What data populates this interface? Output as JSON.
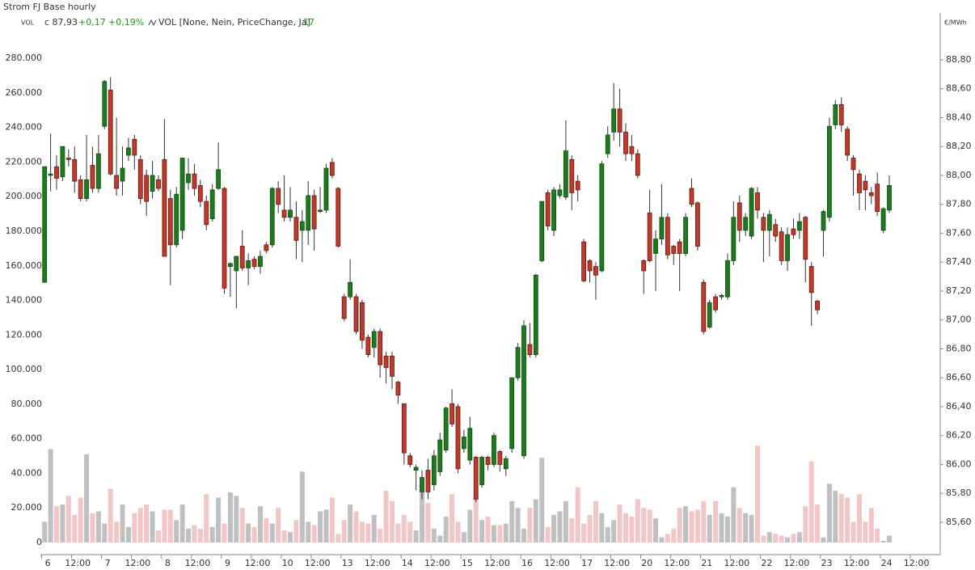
{
  "chart_data": {
    "type": "candlestick",
    "title": "Strom FJ Base hourly",
    "header": {
      "pane_label": "VOL",
      "close": "c 87,93",
      "change": "+0,17",
      "change_pct": "+0,19%",
      "indicator": "VOL [None, Nein, PriceChange, Ja]",
      "indicator_value": "17"
    },
    "y2_unit": "€/MWh",
    "ohlc": {
      "axis": "y2",
      "up_color": "#1e7a1e",
      "down_color": "#c0392b",
      "open": [
        87.26,
        88.0,
        88.06,
        87.99,
        88.12,
        88.11,
        87.97,
        87.84,
        88.07,
        87.91,
        88.34,
        88.59,
        88.0,
        87.96,
        88.14,
        88.25,
        88.11,
        88.0,
        87.89,
        87.97,
        88.11,
        87.84,
        87.52,
        87.62,
        87.95,
        88.01,
        87.93,
        87.82,
        87.7,
        87.91,
        87.91,
        87.37,
        87.34,
        87.51,
        87.36,
        87.42,
        87.37,
        87.52,
        87.52,
        87.91,
        87.76,
        87.71,
        87.71,
        87.62,
        87.62,
        87.86,
        87.75,
        87.76,
        88.09,
        87.91,
        87.16,
        87.16,
        87.16,
        87.12,
        86.88,
        86.81,
        86.92,
        86.75,
        86.75,
        86.57,
        86.42,
        86.06,
        85.96,
        85.81,
        85.96,
        85.86,
        85.95,
        86.1,
        86.42,
        86.4,
        86.11,
        86.03,
        86.05,
        85.86,
        86.05,
        86.0,
        86.09,
        85.97,
        86.11,
        86.6,
        86.06,
        86.83,
        86.76,
        87.41,
        87.88,
        87.62,
        87.86,
        87.85,
        88.11,
        87.96,
        87.54,
        87.41,
        87.37,
        87.34,
        88.15,
        88.3,
        88.46,
        88.3,
        88.2,
        88.15,
        87.41,
        87.74,
        87.46,
        87.56,
        87.71,
        87.51,
        87.54,
        87.46,
        87.91,
        87.81,
        87.26,
        86.95,
        87.16,
        87.16,
        87.16,
        87.41,
        87.81,
        87.62,
        87.58,
        87.88,
        87.71,
        87.62,
        87.66,
        87.61,
        87.41,
        87.63,
        87.62,
        87.71,
        87.37,
        87.13,
        87.62,
        87.71,
        88.35,
        88.49,
        88.32,
        88.12,
        88.01,
        87.96,
        87.88,
        87.94,
        87.62,
        87.76
      ],
      "high": [
        88.06,
        88.29,
        88.14,
        88.2,
        88.18,
        88.2,
        88.0,
        88.28,
        88.2,
        88.28,
        88.66,
        88.68,
        88.4,
        88.2,
        88.26,
        88.28,
        88.14,
        88.04,
        88.1,
        88.0,
        88.39,
        87.9,
        87.92,
        88.12,
        88.12,
        88.08,
        87.97,
        87.86,
        87.94,
        88.23,
        87.92,
        87.4,
        87.44,
        87.62,
        87.46,
        87.44,
        87.48,
        87.54,
        87.92,
        87.96,
        88.0,
        87.92,
        87.82,
        87.76,
        87.96,
        87.9,
        87.92,
        88.08,
        88.12,
        87.92,
        87.18,
        87.42,
        87.18,
        87.14,
        86.9,
        86.94,
        86.94,
        86.78,
        86.78,
        86.58,
        86.42,
        86.08,
        86.0,
        85.96,
        86.04,
        86.1,
        86.22,
        86.4,
        86.52,
        86.42,
        86.24,
        86.33,
        86.06,
        86.06,
        86.06,
        86.22,
        86.1,
        86.06,
        86.6,
        86.84,
        87.0,
        86.98,
        87.32,
        87.82,
        87.9,
        87.92,
        87.94,
        88.38,
        88.14,
        88.0,
        87.56,
        87.42,
        87.4,
        88.1,
        88.34,
        88.64,
        88.6,
        88.36,
        88.28,
        88.18,
        87.42,
        87.9,
        87.62,
        87.94,
        87.74,
        87.52,
        87.56,
        87.74,
        87.98,
        87.82,
        87.28,
        87.14,
        87.18,
        87.18,
        87.46,
        87.82,
        87.86,
        87.74,
        87.92,
        87.92,
        87.74,
        87.76,
        87.7,
        87.64,
        87.64,
        87.7,
        87.74,
        87.72,
        87.4,
        87.14,
        87.76,
        88.4,
        88.52,
        88.54,
        88.34,
        88.14,
        88.04,
        88.0,
        87.92,
        88.02,
        87.78,
        88.0
      ],
      "low": [
        87.26,
        87.89,
        87.9,
        87.96,
        88.06,
        87.88,
        87.82,
        87.82,
        87.88,
        87.88,
        88.32,
        88.0,
        87.86,
        87.86,
        88.1,
        88.04,
        87.8,
        87.72,
        87.84,
        87.89,
        87.44,
        87.24,
        87.5,
        87.56,
        87.9,
        87.86,
        87.78,
        87.62,
        87.68,
        87.9,
        87.18,
        87.16,
        87.08,
        87.34,
        87.24,
        87.35,
        87.32,
        87.46,
        87.5,
        87.74,
        87.68,
        87.68,
        87.42,
        87.4,
        87.52,
        87.48,
        87.74,
        87.74,
        87.98,
        87.5,
        86.99,
        87.14,
        86.9,
        86.8,
        86.74,
        86.74,
        86.6,
        86.56,
        86.52,
        86.42,
        86.0,
        85.98,
        85.82,
        85.76,
        85.76,
        85.82,
        85.92,
        86.08,
        86.26,
        85.94,
        86.08,
        86.0,
        85.74,
        85.84,
        85.96,
        85.98,
        85.95,
        85.92,
        86.08,
        86.58,
        86.04,
        86.74,
        86.74,
        87.4,
        87.62,
        87.58,
        87.84,
        87.83,
        87.76,
        87.82,
        87.26,
        87.26,
        87.14,
        87.33,
        88.12,
        88.24,
        88.2,
        88.1,
        88.1,
        87.98,
        87.18,
        87.4,
        87.2,
        87.52,
        87.42,
        87.38,
        87.2,
        87.44,
        87.78,
        87.48,
        86.9,
        86.94,
        87.05,
        87.14,
        87.14,
        87.38,
        87.54,
        87.58,
        87.56,
        87.7,
        87.4,
        87.44,
        87.54,
        87.38,
        87.34,
        87.56,
        87.56,
        87.26,
        86.96,
        87.04,
        87.44,
        87.68,
        88.32,
        88.3,
        88.1,
        87.86,
        87.76,
        87.76,
        87.8,
        87.72,
        87.6,
        87.74
      ],
      "close": [
        88.06,
        88.01,
        87.98,
        88.2,
        88.11,
        87.96,
        87.84,
        87.97,
        87.91,
        88.15,
        88.65,
        88.01,
        87.91,
        88.05,
        88.19,
        88.14,
        87.84,
        87.82,
        88.0,
        87.91,
        87.44,
        87.52,
        87.87,
        88.12,
        88.01,
        87.91,
        87.82,
        87.66,
        87.9,
        88.04,
        87.22,
        87.39,
        87.44,
        87.36,
        87.41,
        87.37,
        87.44,
        87.48,
        87.91,
        87.8,
        87.71,
        87.76,
        87.55,
        87.68,
        87.86,
        87.63,
        87.76,
        88.05,
        88.0,
        87.51,
        87.01,
        87.26,
        86.92,
        86.86,
        86.76,
        86.92,
        86.69,
        86.67,
        86.61,
        86.48,
        86.08,
        86.0,
        85.98,
        85.91,
        85.81,
        86.06,
        86.17,
        86.39,
        86.28,
        85.97,
        86.19,
        86.25,
        85.76,
        86.05,
        86.0,
        86.2,
        86.0,
        86.04,
        86.6,
        86.81,
        86.96,
        86.76,
        87.31,
        87.82,
        87.65,
        87.9,
        87.9,
        88.17,
        87.88,
        87.9,
        87.27,
        87.34,
        87.31,
        88.08,
        88.28,
        88.46,
        88.3,
        88.15,
        88.15,
        88.0,
        87.34,
        87.41,
        87.56,
        87.71,
        87.45,
        87.46,
        87.46,
        87.71,
        87.8,
        87.51,
        86.92,
        87.12,
        87.07,
        87.17,
        87.41,
        87.71,
        87.62,
        87.71,
        87.91,
        87.76,
        87.62,
        87.73,
        87.58,
        87.41,
        87.59,
        87.59,
        87.68,
        87.42,
        87.19,
        87.07,
        87.75,
        88.34,
        88.49,
        88.35,
        88.14,
        88.04,
        87.88,
        87.9,
        87.86,
        87.75,
        87.77,
        87.93
      ]
    },
    "volume": {
      "axis": "y",
      "up_color": "#c0c0c0",
      "down_color": "#f2c6c6",
      "values": [
        12000,
        54000,
        21000,
        22000,
        27000,
        16000,
        26000,
        51000,
        17000,
        18000,
        11000,
        31000,
        12000,
        22000,
        9000,
        17000,
        20000,
        22000,
        18000,
        7000,
        19000,
        19000,
        13000,
        22000,
        8000,
        10000,
        8000,
        28000,
        9000,
        26000,
        11000,
        29000,
        27000,
        20000,
        11000,
        9000,
        21000,
        14000,
        11000,
        20000,
        7000,
        6000,
        13000,
        41000,
        12000,
        10000,
        18000,
        19000,
        26000,
        5000,
        13000,
        22000,
        18000,
        12000,
        11000,
        16000,
        8000,
        30000,
        24000,
        11000,
        16000,
        12000,
        7000,
        31000,
        23000,
        8000,
        4000,
        15000,
        28000,
        12000,
        6000,
        19000,
        28000,
        13000,
        15000,
        10000,
        10000,
        11000,
        24000,
        20000,
        8000,
        20000,
        25000,
        49000,
        9000,
        16000,
        18000,
        24000,
        14000,
        32000,
        11000,
        16000,
        24000,
        17000,
        9000,
        13000,
        22000,
        17000,
        15000,
        25000,
        20000,
        19000,
        14000,
        3000,
        5000,
        8000,
        20000,
        21000,
        18000,
        19000,
        24000,
        16000,
        24000,
        17000,
        15000,
        32000,
        20000,
        17000,
        16000,
        56000,
        4000,
        6000,
        5000,
        4000,
        3000,
        5000,
        6000,
        21000,
        47000,
        22000,
        3000,
        34000,
        30000,
        28000,
        26000,
        12000,
        28000,
        12000,
        20000,
        8000,
        1000,
        4000
      ]
    },
    "xlim": [
      -0.7,
      149.5
    ],
    "xticks": [
      {
        "value": 0,
        "label": "6"
      },
      {
        "value": 5,
        "label": "12:00"
      },
      {
        "value": 10,
        "label": "7"
      },
      {
        "value": 15,
        "label": "12:00"
      },
      {
        "value": 20,
        "label": "8"
      },
      {
        "value": 25,
        "label": "12:00"
      },
      {
        "value": 30,
        "label": "9"
      },
      {
        "value": 35,
        "label": "12:00"
      },
      {
        "value": 40,
        "label": "10"
      },
      {
        "value": 45,
        "label": "12:00"
      },
      {
        "value": 50,
        "label": "13"
      },
      {
        "value": 55,
        "label": "12:00"
      },
      {
        "value": 60,
        "label": "14"
      },
      {
        "value": 65,
        "label": "12:00"
      },
      {
        "value": 70,
        "label": "15"
      },
      {
        "value": 75,
        "label": "12:00"
      },
      {
        "value": 80,
        "label": "16"
      },
      {
        "value": 85,
        "label": "12:00"
      },
      {
        "value": 90,
        "label": "17"
      },
      {
        "value": 95,
        "label": "12:00"
      },
      {
        "value": 100,
        "label": "20"
      },
      {
        "value": 105,
        "label": "12:00"
      },
      {
        "value": 110,
        "label": "21"
      },
      {
        "value": 115,
        "label": "12:00"
      },
      {
        "value": 120,
        "label": "22"
      },
      {
        "value": 125,
        "label": "12:00"
      },
      {
        "value": 130,
        "label": "23"
      },
      {
        "value": 135,
        "label": "12:00"
      },
      {
        "value": 140,
        "label": "24"
      },
      {
        "value": 145,
        "label": "12:00"
      }
    ],
    "ylim": [
      -7000,
      295000
    ],
    "yticks": [
      0,
      {
        "value": 20000,
        "label": "20.000"
      },
      {
        "value": 40000,
        "label": "40.000"
      },
      {
        "value": 60000,
        "label": "60.000"
      },
      {
        "value": 80000,
        "label": "80.000"
      },
      {
        "value": 100000,
        "label": "100.000"
      },
      {
        "value": 120000,
        "label": "120.000"
      },
      {
        "value": 140000,
        "label": "140.000"
      },
      {
        "value": 160000,
        "label": "160.000"
      },
      {
        "value": 180000,
        "label": "180.000"
      },
      {
        "value": 200000,
        "label": "200.000"
      },
      {
        "value": 220000,
        "label": "220.000"
      },
      {
        "value": 240000,
        "label": "240.000"
      },
      {
        "value": 260000,
        "label": "260.000"
      },
      {
        "value": 280000,
        "label": "280.000"
      }
    ],
    "y2lim": [
      85.376,
      88.99
    ],
    "y2ticks": [
      {
        "value": 85.6,
        "label": "85,60"
      },
      {
        "value": 85.8,
        "label": "85,80"
      },
      {
        "value": 86.0,
        "label": "86,00"
      },
      {
        "value": 86.2,
        "label": "86,20"
      },
      {
        "value": 86.4,
        "label": "86,40"
      },
      {
        "value": 86.6,
        "label": "86,60"
      },
      {
        "value": 86.8,
        "label": "86,80"
      },
      {
        "value": 87.0,
        "label": "87,00"
      },
      {
        "value": 87.2,
        "label": "87,20"
      },
      {
        "value": 87.4,
        "label": "87,40"
      },
      {
        "value": 87.6,
        "label": "87,60"
      },
      {
        "value": 87.8,
        "label": "87,80"
      },
      {
        "value": 88.0,
        "label": "88,00"
      },
      {
        "value": 88.2,
        "label": "88,20"
      },
      {
        "value": 88.4,
        "label": "88,40"
      },
      {
        "value": 88.6,
        "label": "88,60"
      },
      {
        "value": 88.8,
        "label": "88,80"
      }
    ],
    "grid": false
  }
}
